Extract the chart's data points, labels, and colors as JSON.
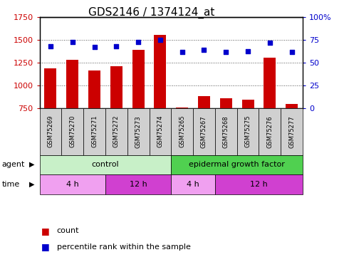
{
  "title": "GDS2146 / 1374124_at",
  "samples": [
    "GSM75269",
    "GSM75270",
    "GSM75271",
    "GSM75272",
    "GSM75273",
    "GSM75274",
    "GSM75265",
    "GSM75267",
    "GSM75268",
    "GSM75275",
    "GSM75276",
    "GSM75277"
  ],
  "counts": [
    1185,
    1280,
    1165,
    1215,
    1390,
    1560,
    760,
    880,
    855,
    840,
    1305,
    795
  ],
  "percentiles": [
    68,
    73,
    67,
    68,
    73,
    75,
    62,
    64,
    62,
    63,
    72,
    62
  ],
  "bar_color": "#cc0000",
  "dot_color": "#0000cc",
  "ylim_left": [
    750,
    1750
  ],
  "ylim_right": [
    0,
    100
  ],
  "yticks_left": [
    750,
    1000,
    1250,
    1500,
    1750
  ],
  "yticks_right": [
    0,
    25,
    50,
    75,
    100
  ],
  "ytick_labels_right": [
    "0",
    "25",
    "50",
    "75",
    "100%"
  ],
  "agent_groups": [
    {
      "label": "control",
      "start": 0,
      "end": 5,
      "color": "#c8f0c8"
    },
    {
      "label": "epidermal growth factor",
      "start": 6,
      "end": 11,
      "color": "#50d050"
    }
  ],
  "time_groups": [
    {
      "label": "4 h",
      "start": 0,
      "end": 2,
      "color": "#f0a0f0"
    },
    {
      "label": "12 h",
      "start": 3,
      "end": 5,
      "color": "#d040d0"
    },
    {
      "label": "4 h",
      "start": 6,
      "end": 7,
      "color": "#f0a0f0"
    },
    {
      "label": "12 h",
      "start": 8,
      "end": 11,
      "color": "#d040d0"
    }
  ],
  "grid_color": "#555555",
  "sample_box_color": "#d0d0d0",
  "legend_count_color": "#cc0000",
  "legend_pct_color": "#0000cc",
  "title_fontsize": 11,
  "tick_fontsize": 8,
  "sample_fontsize": 6,
  "row_fontsize": 8,
  "legend_fontsize": 8
}
